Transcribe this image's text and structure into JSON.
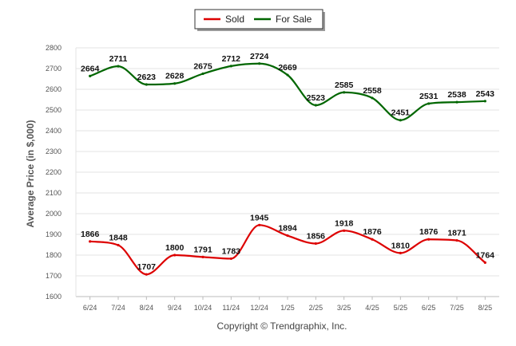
{
  "chart_data": {
    "type": "line",
    "title": "",
    "xlabel": "",
    "ylabel": "Average Price (in $,000)",
    "ylim": [
      1600,
      2800
    ],
    "y_ticks": [
      1600,
      1700,
      1800,
      1900,
      2000,
      2100,
      2200,
      2300,
      2400,
      2500,
      2600,
      2700,
      2800
    ],
    "grid": true,
    "legend_position": "top-center",
    "categories": [
      "6/24",
      "7/24",
      "8/24",
      "9/24",
      "10/24",
      "11/24",
      "12/24",
      "1/25",
      "2/25",
      "3/25",
      "4/25",
      "5/25",
      "6/25",
      "7/25",
      "8/25"
    ],
    "series": [
      {
        "name": "Sold",
        "color": "#dd0000",
        "values": [
          1866,
          1848,
          1707,
          1800,
          1791,
          1783,
          1945,
          1894,
          1856,
          1918,
          1876,
          1810,
          1876,
          1871,
          1764
        ],
        "labels": [
          "1866",
          "1848",
          "1707",
          "1800",
          "1791",
          "1783",
          "1945",
          "1894",
          "1856",
          "1918",
          "1876",
          "1810",
          "1876",
          "1871",
          "1764"
        ]
      },
      {
        "name": "For Sale",
        "color": "#006600",
        "values": [
          2664,
          2711,
          2623,
          2628,
          2675,
          2712,
          2724,
          2669,
          2523,
          2585,
          2558,
          2451,
          2531,
          2538,
          2543
        ],
        "labels": [
          "2664",
          "2711",
          "2623",
          "2628",
          "2675",
          "2712",
          "2724",
          "2669",
          "2523",
          "2585",
          "2558",
          "2451",
          "2531",
          "2538",
          "2543"
        ]
      }
    ]
  },
  "footer": {
    "copyright": "Copyright © Trendgraphix, Inc."
  }
}
